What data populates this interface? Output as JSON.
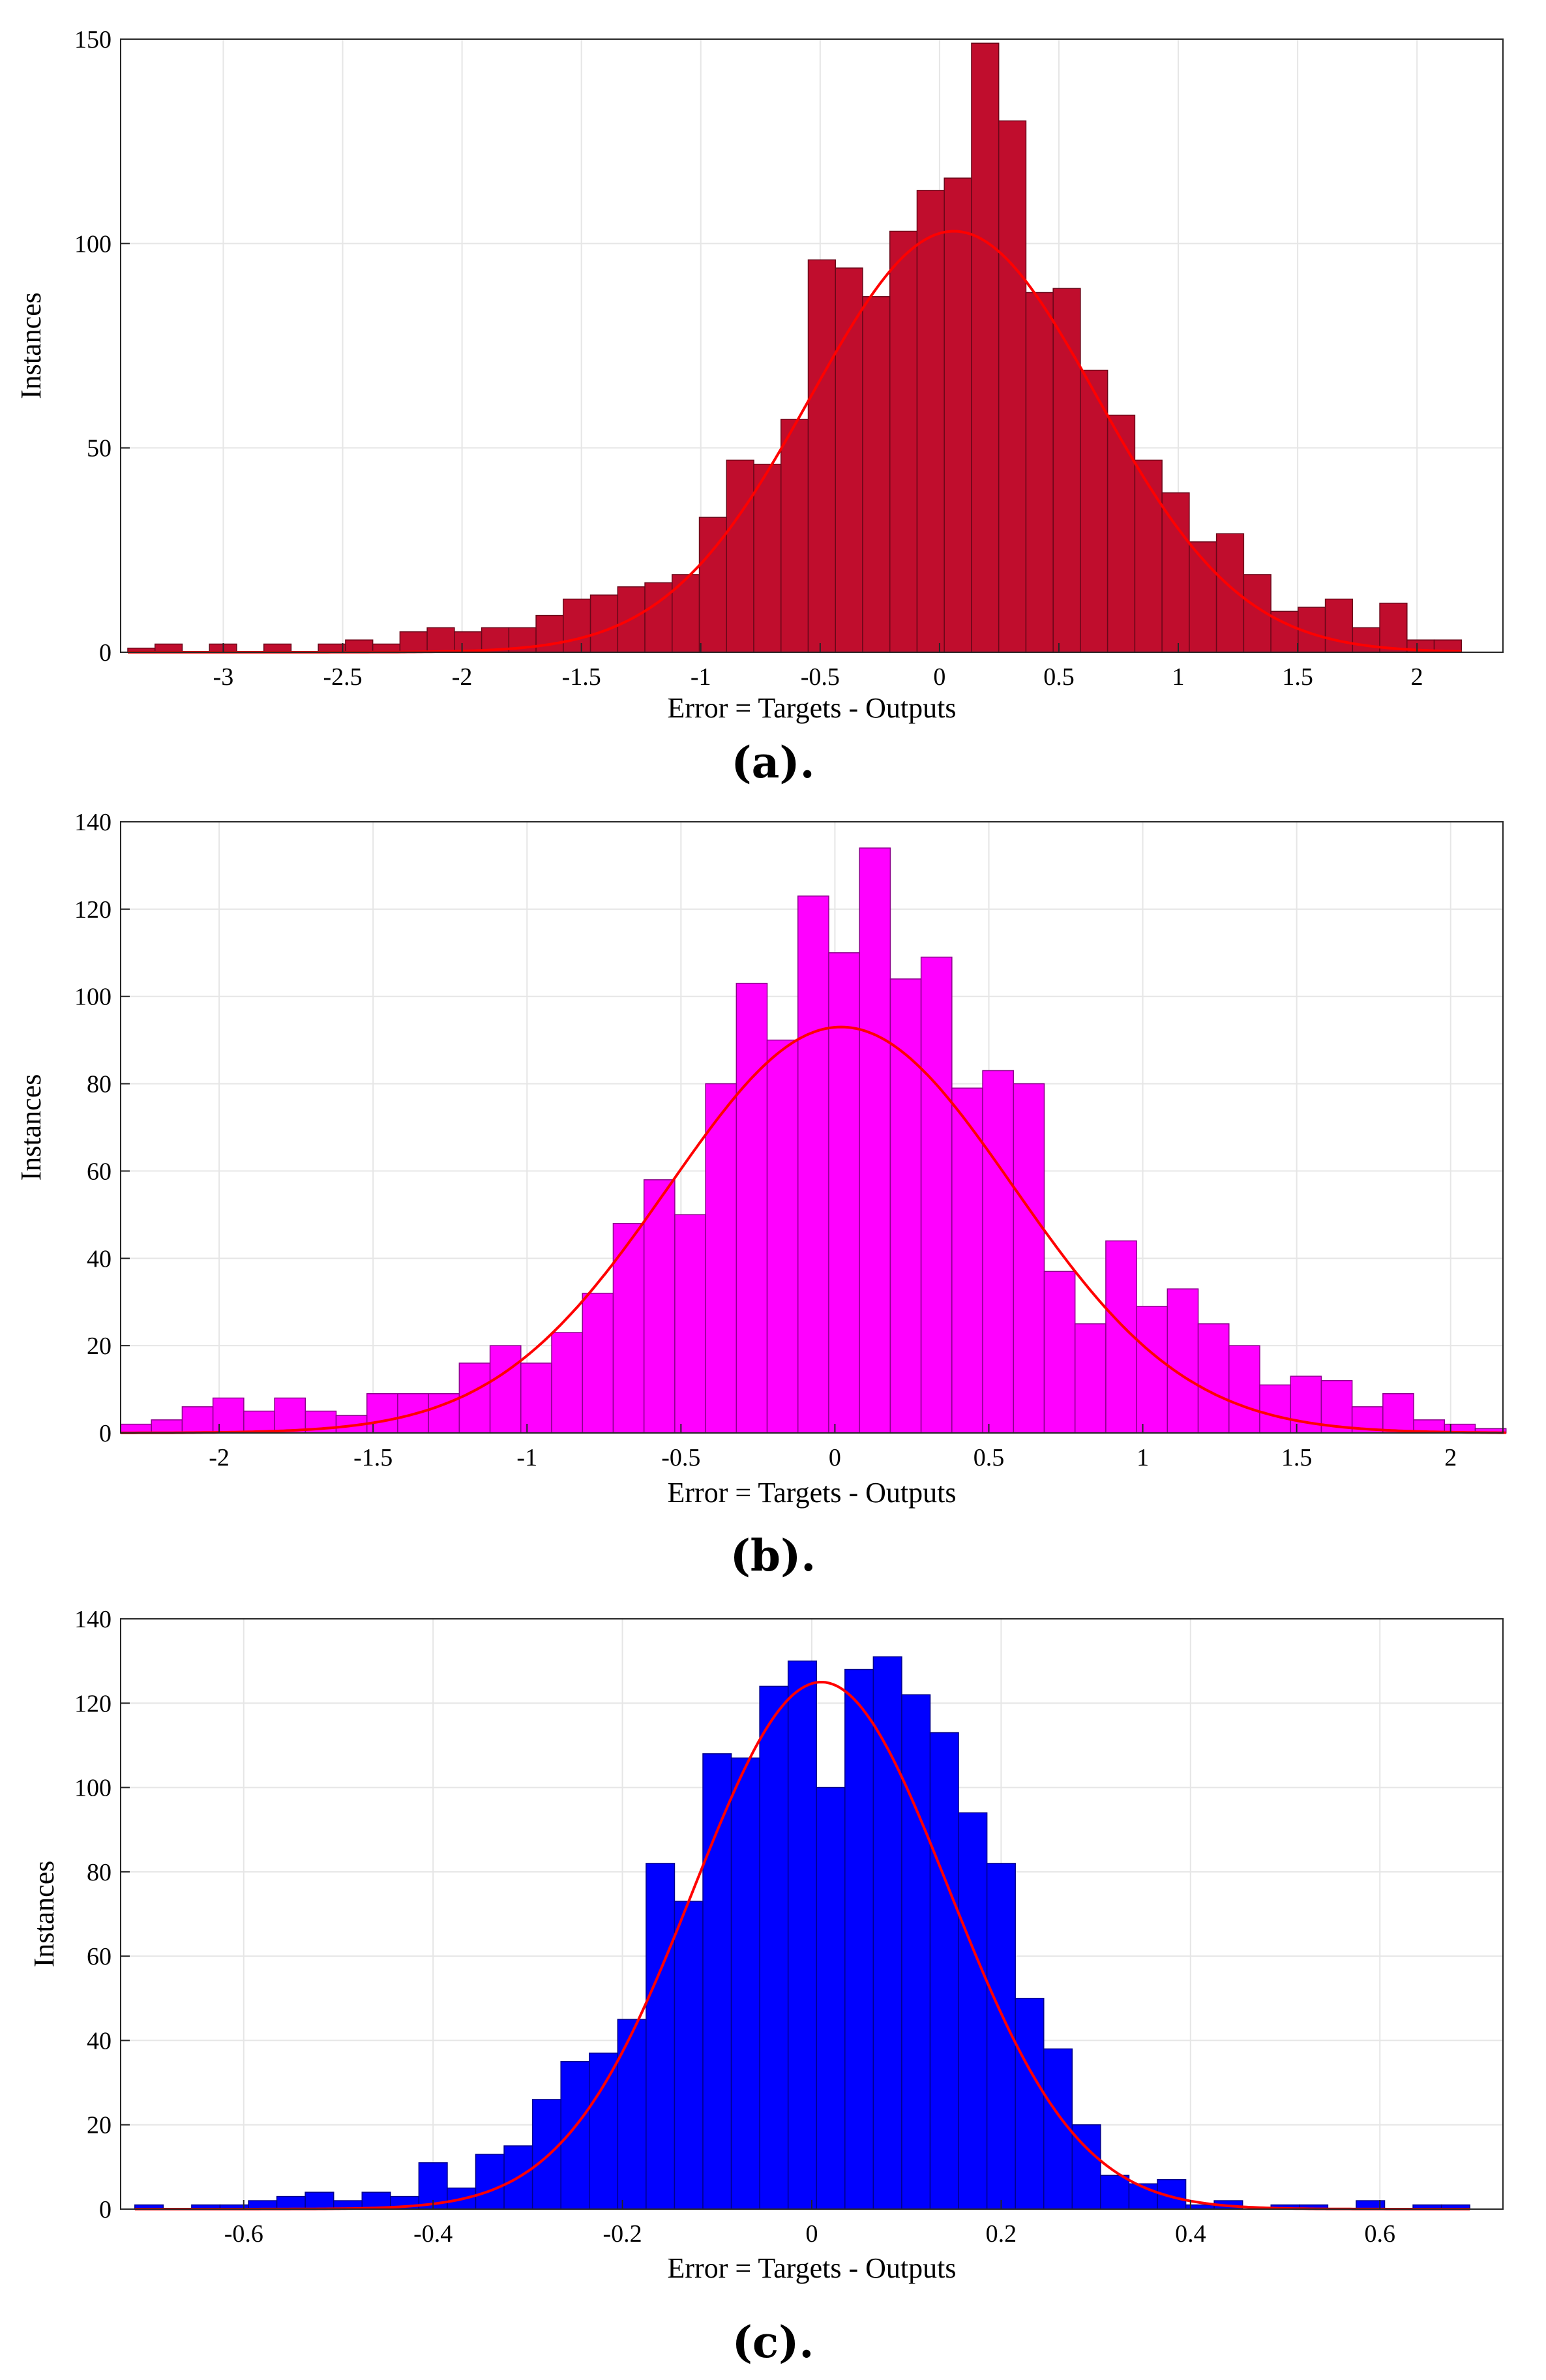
{
  "chart_data": [
    {
      "type": "bar",
      "caption": "(a).",
      "xlabel": "Error = Targets - Outputs",
      "ylabel": "Instances",
      "xlim": [
        -3.43,
        2.36
      ],
      "ylim": [
        0,
        150
      ],
      "xticks": [
        "-3",
        "-2.5",
        "-2",
        "-1.5",
        "-1",
        "-0.5",
        "0",
        "0.5",
        "1",
        "1.5",
        "2"
      ],
      "yticks": [
        "0",
        "50",
        "100",
        "150"
      ],
      "bin_start": -3.4,
      "bin_width": 0.114,
      "values": [
        1,
        2,
        0,
        2,
        0,
        2,
        0,
        2,
        3,
        2,
        5,
        6,
        5,
        6,
        6,
        9,
        13,
        14,
        16,
        17,
        19,
        33,
        47,
        46,
        57,
        96,
        94,
        87,
        103,
        113,
        116,
        149,
        130,
        88,
        89,
        69,
        58,
        47,
        39,
        27,
        29,
        19,
        10,
        11,
        13,
        6,
        12,
        3,
        3
      ],
      "fit": {
        "mean": 0.06,
        "sd": 0.6,
        "peak": 103
      },
      "bar_color": "#c00d2d",
      "curve_color": "#ff0000"
    },
    {
      "type": "bar",
      "caption": "(b).",
      "xlabel": "Error = Targets - Outputs",
      "ylabel": "Instances",
      "xlim": [
        -2.32,
        2.17
      ],
      "ylim": [
        0,
        140
      ],
      "xticks": [
        "-2",
        "-1.5",
        "-1",
        "-0.5",
        "0",
        "0.5",
        "1",
        "1.5",
        "2"
      ],
      "yticks": [
        "0",
        "20",
        "40",
        "60",
        "80",
        "100",
        "120",
        "140"
      ],
      "bin_start": -2.32,
      "bin_width": 0.1,
      "values": [
        2,
        3,
        6,
        8,
        5,
        8,
        5,
        4,
        9,
        9,
        9,
        16,
        20,
        16,
        23,
        32,
        48,
        58,
        50,
        80,
        103,
        90,
        123,
        110,
        134,
        104,
        109,
        79,
        83,
        80,
        37,
        25,
        44,
        29,
        33,
        25,
        20,
        11,
        13,
        12,
        6,
        9,
        3,
        2,
        1
      ],
      "fit": {
        "mean": 0.02,
        "sd": 0.56,
        "peak": 93
      },
      "bar_color": "#ff00ff",
      "curve_color": "#ff0000"
    },
    {
      "type": "bar",
      "caption": "(c).",
      "xlabel": "Error = Targets - Outputs",
      "ylabel": "Instances",
      "xlim": [
        -0.73,
        0.73
      ],
      "ylim": [
        0,
        140
      ],
      "xticks": [
        "-0.6",
        "-0.4",
        "-0.2",
        "0",
        "0.2",
        "0.4",
        "0.6"
      ],
      "yticks": [
        "0",
        "20",
        "40",
        "60",
        "80",
        "100",
        "120",
        "140"
      ],
      "bin_start": -0.715,
      "bin_width": 0.03,
      "values": [
        1,
        0,
        1,
        1,
        2,
        3,
        4,
        2,
        4,
        3,
        11,
        5,
        13,
        15,
        26,
        35,
        37,
        45,
        82,
        73,
        108,
        107,
        124,
        130,
        100,
        128,
        131,
        122,
        113,
        94,
        82,
        50,
        38,
        20,
        8,
        6,
        7,
        1,
        2,
        0,
        1,
        1,
        0,
        2,
        0,
        1,
        1
      ],
      "fit": {
        "mean": 0.01,
        "sd": 0.135,
        "peak": 125
      },
      "bar_color": "#0000ff",
      "curve_color": "#ff0000"
    }
  ]
}
